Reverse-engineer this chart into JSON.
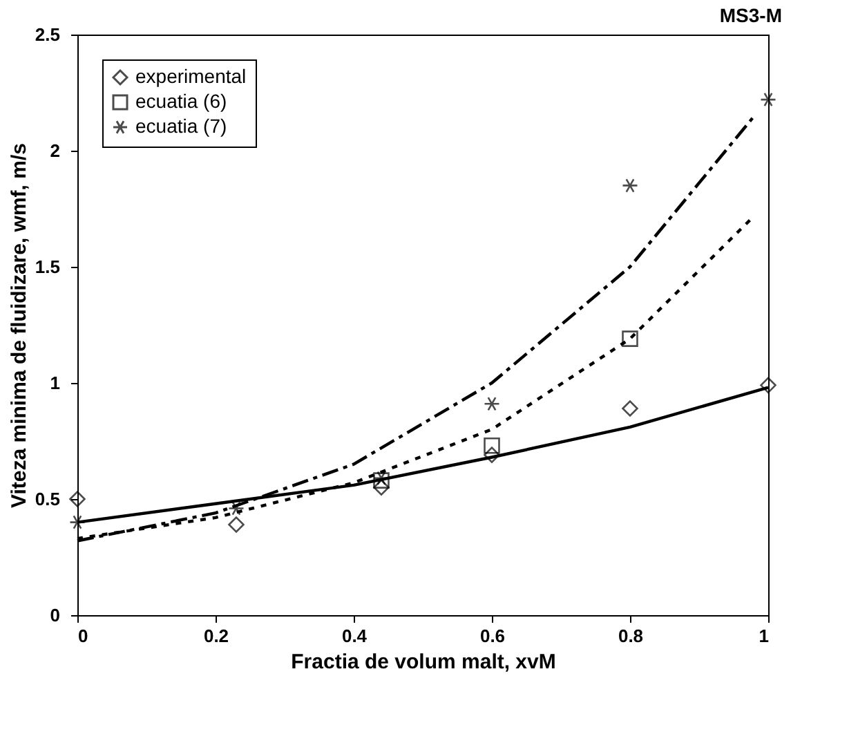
{
  "chart_data": {
    "type": "scatter",
    "xlabel": "Fractia de volum malt, xvM",
    "ylabel": "Viteza minima de fluidizare, wmf, m/s",
    "annotations": [
      "MS3-M"
    ],
    "xlim": [
      0,
      1
    ],
    "xticks": [
      0,
      0.2,
      0.4,
      0.6,
      0.8,
      1
    ],
    "ylim": [
      0,
      2.5
    ],
    "yticks": [
      0,
      0.5,
      1,
      1.5,
      2,
      2.5
    ],
    "grid": false,
    "legend": "top left",
    "series": [
      {
        "name": "experimental",
        "marker": "diamond",
        "color": "#000000",
        "x": [
          0,
          0.23,
          0.44,
          0.6,
          0.8,
          1
        ],
        "values": [
          0.5,
          0.39,
          0.55,
          0.69,
          0.89,
          0.99
        ]
      },
      {
        "name": "ecuatia (6)",
        "marker": "square",
        "color": "#000000",
        "x": [
          0.44,
          0.6,
          0.8
        ],
        "values": [
          0.58,
          0.73,
          1.19
        ]
      },
      {
        "name": "ecuatia (7)",
        "marker": "cross",
        "color": "#000000",
        "x": [
          0,
          0.23,
          0.44,
          0.6,
          0.8,
          1
        ],
        "values": [
          0.4,
          0.46,
          0.59,
          0.91,
          1.85,
          2.22
        ]
      },
      {
        "type": "line",
        "line_style": "solid",
        "color": "#000000",
        "x": [
          0,
          0.2,
          0.4,
          0.6,
          0.8,
          1
        ],
        "values": [
          0.4,
          0.48,
          0.56,
          0.68,
          0.81,
          0.98
        ]
      },
      {
        "type": "line",
        "line_style": "dotted",
        "color": "#000000",
        "x": [
          0,
          0.2,
          0.4,
          0.6,
          0.8,
          0.98
        ],
        "values": [
          0.33,
          0.42,
          0.57,
          0.8,
          1.19,
          1.72
        ]
      },
      {
        "type": "line",
        "line_style": "dashed",
        "color": "#000000",
        "x": [
          0,
          0.2,
          0.4,
          0.6,
          0.8,
          0.98
        ],
        "values": [
          0.32,
          0.44,
          0.65,
          1.0,
          1.5,
          2.15
        ]
      }
    ]
  }
}
